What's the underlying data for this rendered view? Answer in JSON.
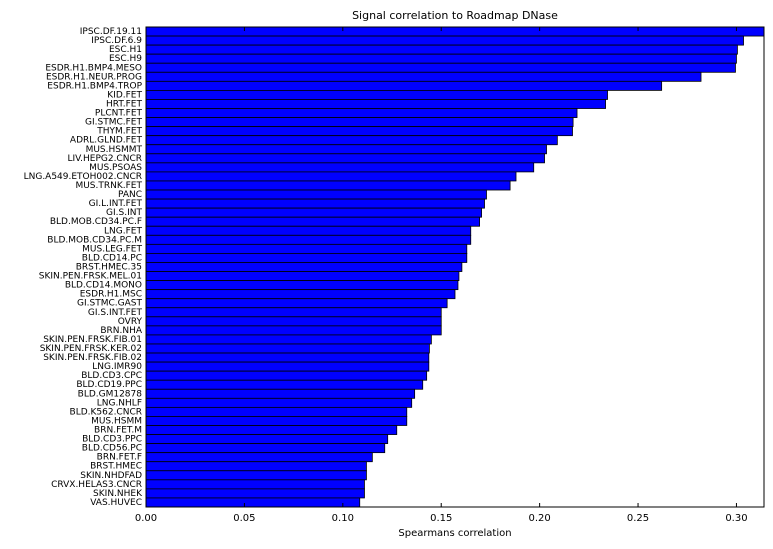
{
  "chart_data": {
    "type": "barh",
    "title": "Signal correlation to Roadmap DNase",
    "x_label": "Spearmans correlation",
    "categories": [
      "IPSC.DF.19.11",
      "IPSC.DF.6.9",
      "ESC.H1",
      "ESC.H9",
      "ESDR.H1.BMP4.MESO",
      "ESDR.H1.NEUR.PROG",
      "ESDR.H1.BMP4.TROP",
      "KID.FET",
      "HRT.FET",
      "PLCNT.FET",
      "GI.STMC.FET",
      "THYM.FET",
      "ADRL.GLND.FET",
      "MUS.HSMMT",
      "LIV.HEPG2.CNCR",
      "MUS.PSOAS",
      "LNG.A549.ETOH002.CNCR",
      "MUS.TRNK.FET",
      "PANC",
      "GI.L.INT.FET",
      "GI.S.INT",
      "BLD.MOB.CD34.PC.F",
      "LNG.FET",
      "BLD.MOB.CD34.PC.M",
      "MUS.LEG.FET",
      "BLD.CD14.PC",
      "BRST.HMEC.35",
      "SKIN.PEN.FRSK.MEL.01",
      "BLD.CD14.MONO",
      "ESDR.H1.MSC",
      "GI.STMC.GAST",
      "GI.S.INT.FET",
      "OVRY",
      "BRN.NHA",
      "SKIN.PEN.FRSK.FIB.01",
      "SKIN.PEN.FRSK.KER.02",
      "SKIN.PEN.FRSK.FIB.02",
      "LNG.IMR90",
      "BLD.CD3.CPC",
      "BLD.CD19.PPC",
      "BLD.GM12878",
      "LNG.NHLF",
      "BLD.K562.CNCR",
      "MUS.HSMM",
      "BRN.FET.M",
      "BLD.CD3.PPC",
      "BLD.CD56.PC",
      "BRN.FET.F",
      "BRST.HMEC",
      "SKIN.NHDFAD",
      "CRVX.HELAS3.CNCR",
      "SKIN.NHEK",
      "VAS.HUVEC"
    ],
    "values": [
      0.314,
      0.3036,
      0.3005,
      0.3,
      0.2995,
      0.282,
      0.262,
      0.2345,
      0.2335,
      0.219,
      0.217,
      0.2167,
      0.209,
      0.2035,
      0.2025,
      0.197,
      0.188,
      0.185,
      0.173,
      0.172,
      0.1705,
      0.1695,
      0.165,
      0.165,
      0.163,
      0.163,
      0.1605,
      0.159,
      0.1585,
      0.157,
      0.153,
      0.15,
      0.15,
      0.15,
      0.145,
      0.144,
      0.1437,
      0.1437,
      0.1426,
      0.1406,
      0.1365,
      0.135,
      0.1325,
      0.1325,
      0.1274,
      0.1228,
      0.1213,
      0.115,
      0.112,
      0.112,
      0.111,
      0.111,
      0.1086
    ],
    "color": "#0000ff",
    "xlim": [
      0,
      0.314
    ],
    "xticks": [
      {
        "value": 0,
        "label": "0.00"
      },
      {
        "value": 0.05,
        "label": "0.05"
      },
      {
        "value": 0.1,
        "label": "0.10"
      },
      {
        "value": 0.15,
        "label": "0.15"
      },
      {
        "value": 0.2,
        "label": "0.20"
      },
      {
        "value": 0.25,
        "label": "0.25"
      },
      {
        "value": 0.3,
        "label": "0.30"
      }
    ]
  }
}
